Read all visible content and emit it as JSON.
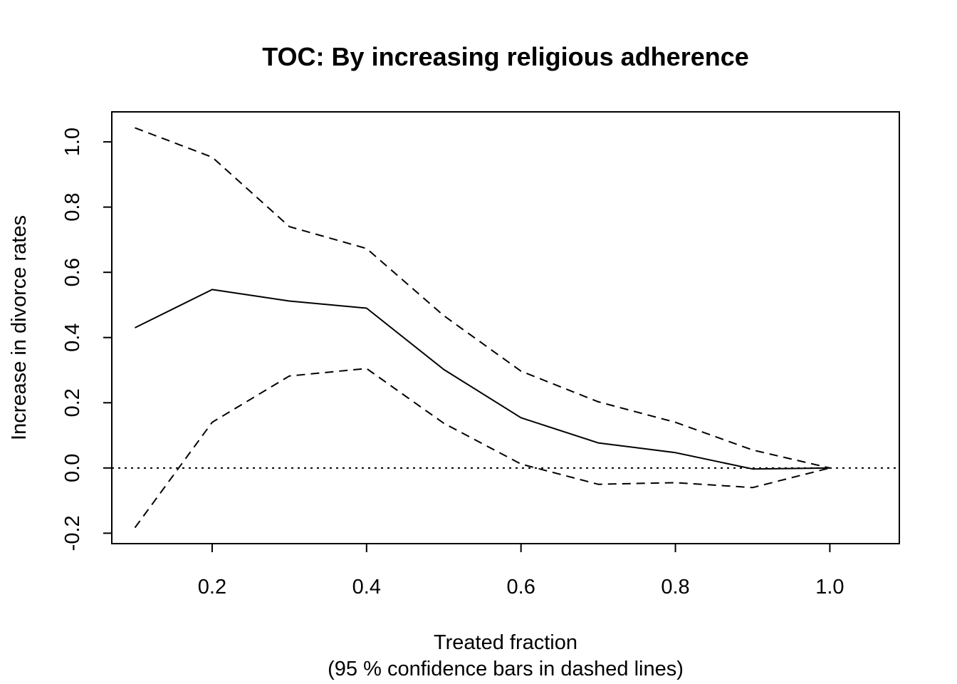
{
  "chart_data": {
    "type": "line",
    "title": "TOC: By increasing religious adherence",
    "xlabel": "Treated fraction",
    "xlabel_sub": "(95 % confidence bars in dashed lines)",
    "ylabel": "Increase in divorce rates",
    "xlim": [
      0.07,
      1.09
    ],
    "ylim": [
      -0.232,
      1.092
    ],
    "x_ticks": [
      0.2,
      0.4,
      0.6,
      0.8,
      1.0
    ],
    "x_tick_labels": [
      "0.2",
      "0.4",
      "0.6",
      "0.8",
      "1.0"
    ],
    "y_ticks": [
      -0.2,
      0.0,
      0.2,
      0.4,
      0.6,
      0.8,
      1.0
    ],
    "y_tick_labels": [
      "-0.2",
      "0.0",
      "0.2",
      "0.4",
      "0.6",
      "0.8",
      "1.0"
    ],
    "grid": false,
    "x": [
      0.1,
      0.2,
      0.3,
      0.4,
      0.5,
      0.6,
      0.7,
      0.8,
      0.9,
      1.0
    ],
    "series": [
      {
        "style": "solid",
        "values": [
          0.43,
          0.547,
          0.512,
          0.49,
          0.302,
          0.154,
          0.077,
          0.047,
          -0.003,
          0.0
        ]
      },
      {
        "style": "dashed",
        "values": [
          1.043,
          0.953,
          0.74,
          0.673,
          0.467,
          0.297,
          0.203,
          0.14,
          0.055,
          0.0
        ]
      },
      {
        "style": "dashed",
        "values": [
          -0.183,
          0.14,
          0.282,
          0.305,
          0.137,
          0.012,
          -0.05,
          -0.045,
          -0.06,
          0.0
        ]
      }
    ],
    "reference_lines": [
      {
        "axis": "y",
        "value": 0.0,
        "style": "dotted"
      }
    ]
  }
}
